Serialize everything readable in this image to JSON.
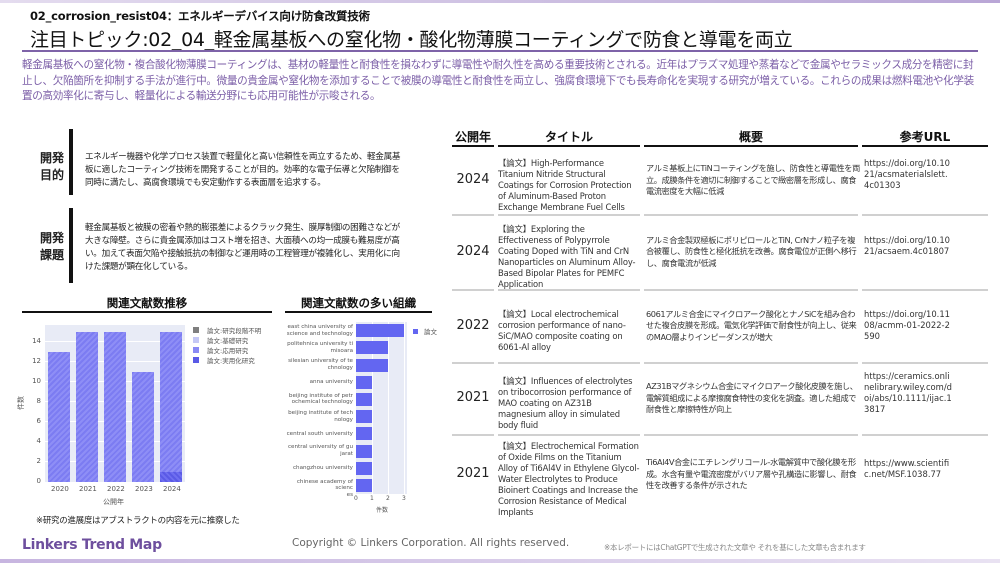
{
  "header": {
    "subtitle": "02_corrosion_resist04：エネルギーデバイス向け防食改質技術",
    "title": "注目トピック:02_04_軽金属基板への窒化物・酸化物薄膜コーティングで防食と導電を両立",
    "description": "軽金属基板への窒化物・複合酸化物薄膜コーティングは、基材の軽量性と耐食性を損なわずに導電性や耐久性を高める重要技術とされる。近年はプラズマ処理や蒸着などで金属やセラミックス成分を精密に封止し、欠陥箇所を抑制する手法が進行中。微量の貴金属や窒化物を添加することで被膜の導電性と耐食性を両立し、強腐食環境下でも長寿命化を実現する研究が増えている。これらの成果は燃料電池や化学装置の高効率化に寄与し、軽量化による輸送分野にも応用可能性が示唆される。"
  },
  "sections": {
    "purpose": {
      "label_line1": "開発",
      "label_line2": "目的",
      "text": "エネルギー機器や化学プロセス装置で軽量化と高い信頼性を両立するため、軽金属基板に適したコーティング技術を開発することが目的。効率的な電子伝導と欠陥制御を同時に満たし、高腐食環境でも安定動作する表面層を追求する。"
    },
    "challenge": {
      "label_line1": "開発",
      "label_line2": "課題",
      "text": "軽金属基板と被膜の密着や熱的膨張差によるクラック発生、膜厚制御の困難さなどが大きな障壁。さらに貴金属添加はコスト増を招き、大面積への均一成膜も難易度が高い。加えて表面欠陥や接触抵抗の制御など運用時の工程管理が複雑化し、実用化に向けた課題が顕在化している。"
    }
  },
  "charts": {
    "trend_title": "関連文献数推移",
    "org_title": "関連文献数の多い組織",
    "footnote": "※研究の進展度はアブストラクトの内容を元に推察した"
  },
  "chart_data": [
    {
      "type": "bar",
      "title": "関連文献数推移",
      "stacked": true,
      "categories": [
        "2020",
        "2021",
        "2022",
        "2023",
        "2024"
      ],
      "series": [
        {
          "name": "論文:研究段階不明",
          "color": "#7f7f7f",
          "values": [
            0,
            0,
            0,
            0,
            0
          ]
        },
        {
          "name": "論文:基礎研究",
          "color": "#c5c8f5",
          "values": [
            0,
            0,
            0,
            0,
            0
          ]
        },
        {
          "name": "論文:応用研究",
          "color": "#8a8af4",
          "values": [
            13,
            15,
            15,
            11,
            14
          ]
        },
        {
          "name": "論文:実用化研究",
          "color": "#5a5ae6",
          "values": [
            0,
            0,
            0,
            0,
            1
          ]
        }
      ],
      "totals": [
        13,
        15,
        15,
        11,
        15
      ],
      "xlabel": "公開年",
      "ylabel": "件数",
      "yticks": [
        0,
        2,
        4,
        6,
        8,
        10,
        12,
        14
      ],
      "ylim": [
        0,
        15.7
      ],
      "grid": true,
      "legend_position": "right"
    },
    {
      "type": "bar",
      "orientation": "horizontal",
      "title": "関連文献数の多い組織",
      "categories": [
        "east china university of science and technology",
        "politehnica university timisoara",
        "silesian university of technology",
        "anna university",
        "beijing institute of petrochemical technology",
        "beijing institute of technology",
        "central south university",
        "central university of gujarat",
        "changzhou university",
        "chinese academy of sciences"
      ],
      "category_labels_wrapped": [
        [
          "east china university of",
          "science and technology"
        ],
        [
          "politehnica university ti",
          "misoara"
        ],
        [
          "silesian university of te",
          "chnology"
        ],
        [
          "anna university"
        ],
        [
          "beijing institute of petr",
          "ochemical technology"
        ],
        [
          "beijing institute of tech",
          "nology"
        ],
        [
          "central south university"
        ],
        [
          "central university of gu",
          "jarat"
        ],
        [
          "changzhou university"
        ],
        [
          "chinese academy of scienc",
          "es"
        ]
      ],
      "series": [
        {
          "name": "論文",
          "color": "#6366f1",
          "values": [
            3,
            2,
            2,
            1,
            1,
            1,
            1,
            1,
            1,
            1
          ]
        }
      ],
      "xlabel": "件数",
      "xticks": [
        0,
        1,
        2,
        3
      ],
      "xlim": [
        0,
        3.2
      ],
      "legend_position": "right"
    }
  ],
  "table": {
    "headers": {
      "year": "公開年",
      "title": "タイトル",
      "summary": "概要",
      "url": "参考URL"
    },
    "rows": [
      {
        "year": "2024",
        "title": "【論文】High-Performance Titanium Nitride Structural Coatings for Corrosion Protection of Aluminum-Based Proton Exchange Membrane Fuel Cells",
        "summary": "アルミ基板上にTiNコーティングを施し、防食性と導電性を両立。成膜条件を適切に制御することで緻密層を形成し、腐食電流密度を大幅に低減",
        "url": "https://doi.org/10.1021/acsmaterialslett.4c01303"
      },
      {
        "year": "2024",
        "title": "【論文】Exploring the Effectiveness of Polypyrrole Coating Doped with TiN and CrN Nanoparticles on Aluminum Alloy-Based Bipolar Plates for PEMFC Application",
        "summary": "アルミ合金製双極板にポリピロールとTiN, CrNナノ粒子を複合被覆し、防食性と極化抵抗を改善。腐食電位が正側へ移行し、腐食電流が低減",
        "url": "https://doi.org/10.1021/acsaem.4c01807"
      },
      {
        "year": "2022",
        "title": "【論文】Local electrochemical corrosion performance of nano-SiC/MAO composite coating on 6061-Al alloy",
        "summary": "6061アルミ合金にマイクロアーク酸化とナノSiCを組み合わせた複合皮膜を形成。電気化学評価で耐食性が向上し、従来のMAO層よりインピーダンスが増大",
        "url": "https://doi.org/10.1108/acmm-01-2022-2590"
      },
      {
        "year": "2021",
        "title": "【論文】Influences of electrolytes on tribocorrosion performance of MAO coating on AZ31B magnesium alloy in simulated body fluid",
        "summary": "AZ31Bマグネシウム合金にマイクロアーク酸化皮膜を施し、電解質組成による摩擦腐食特性の変化を調査。適した組成で耐食性と摩擦特性が向上",
        "url": "https://ceramics.onlinelibrary.wiley.com/doi/abs/10.1111/ijac.13817"
      },
      {
        "year": "2021",
        "title": "【論文】Electrochemical Formation of Oxide Films on the Titanium Alloy of Ti6Al4V in Ethylene Glycol-Water Electrolytes to Produce Bioinert Coatings and Increase the Corrosion Resistance of Medical Implants",
        "summary": "Ti6Al4V合金にエチレングリコール-水電解質中で酸化膜を形成。水含有量や電流密度がバリア層や孔構造に影響し、耐食性を改善する条件が示された",
        "url": "https://www.scientific.net/MSF.1038.77"
      }
    ]
  },
  "footer": {
    "logo": "Linkers Trend Map",
    "copyright": "Copyright © Linkers Corporation. All rights reserved.",
    "disclaimer": "※本レポートにはChatGPTで生成された文章や それを基にした文章も含まれます"
  },
  "colors": {
    "accent": "#7e63a8",
    "description_text": "#7b5ea7",
    "bar_applied": "#8a8af4",
    "bar_practical": "#5a5ae6",
    "hbar": "#6366f1",
    "plot_bg": "#e8ebf6"
  }
}
